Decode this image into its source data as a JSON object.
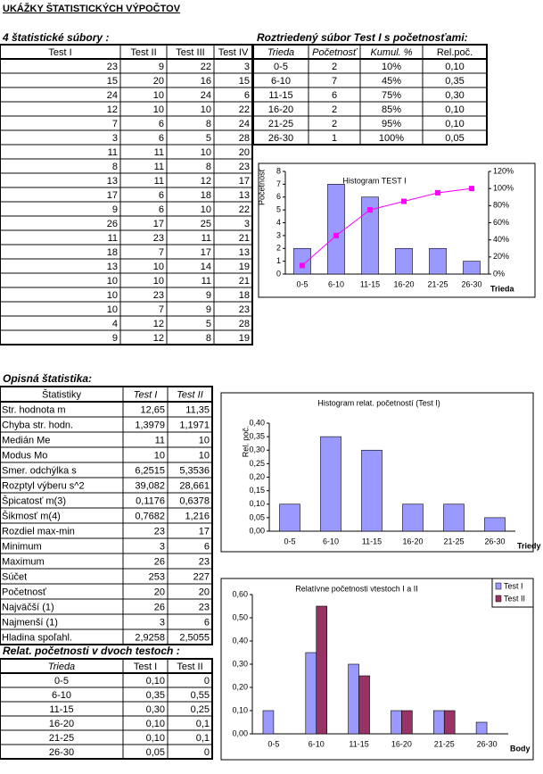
{
  "title": "UKÁŽKY ŠTATISTICKÝCH VÝPOČTOV",
  "raw": {
    "heading": "4 štatistické súbory :",
    "header": [
      "Test I",
      "Test II",
      "Test III",
      "Test IV"
    ],
    "rows": [
      [
        23,
        9,
        22,
        3
      ],
      [
        15,
        20,
        16,
        15
      ],
      [
        24,
        10,
        24,
        6
      ],
      [
        12,
        10,
        10,
        22
      ],
      [
        7,
        6,
        8,
        24
      ],
      [
        3,
        6,
        5,
        28
      ],
      [
        11,
        11,
        10,
        20
      ],
      [
        8,
        11,
        8,
        23
      ],
      [
        13,
        11,
        12,
        17
      ],
      [
        17,
        6,
        18,
        13
      ],
      [
        9,
        6,
        10,
        22
      ],
      [
        26,
        17,
        25,
        3
      ],
      [
        11,
        23,
        11,
        21
      ],
      [
        18,
        7,
        17,
        13
      ],
      [
        13,
        10,
        14,
        19
      ],
      [
        10,
        10,
        11,
        21
      ],
      [
        10,
        23,
        9,
        18
      ],
      [
        10,
        7,
        9,
        23
      ],
      [
        4,
        12,
        5,
        28
      ],
      [
        9,
        12,
        8,
        19
      ]
    ]
  },
  "freq": {
    "heading": "Roztriedený súbor Test I s početnosťami:",
    "header": [
      "Trieda",
      "Početnosť",
      "Kumul. %",
      "Rel.poč."
    ],
    "rows": [
      [
        "0-5",
        2,
        "10%",
        "0,10"
      ],
      [
        "6-10",
        7,
        "45%",
        "0,35"
      ],
      [
        "11-15",
        6,
        "75%",
        "0,30"
      ],
      [
        "16-20",
        2,
        "85%",
        "0,10"
      ],
      [
        "21-25",
        2,
        "95%",
        "0,10"
      ],
      [
        "26-30",
        1,
        "100%",
        "0,05"
      ]
    ]
  },
  "desc": {
    "heading": "Opisná štatistika:",
    "header": [
      "Štatistiky",
      "Test I",
      "Test II"
    ],
    "rows": [
      [
        "Str. hodnota m",
        "12,65",
        "11,35"
      ],
      [
        "Chyba str. hodn.",
        "1,3979",
        "1,1971"
      ],
      [
        "Medián  Me",
        11,
        10
      ],
      [
        "Modus Mo",
        10,
        10
      ],
      [
        "Smer. odchýlka s",
        "6,2515",
        "5,3536"
      ],
      [
        "Rozptyl výberu s^2",
        "39,082",
        "28,661"
      ],
      [
        "Špicatosť m(3)",
        "0,1176",
        "0,6378"
      ],
      [
        "Šikmosť m(4)",
        "0,7682",
        "1,216"
      ],
      [
        "Rozdiel max-min",
        23,
        17
      ],
      [
        "Minimum",
        3,
        6
      ],
      [
        "Maximum",
        26,
        23
      ],
      [
        "Súčet",
        253,
        227
      ],
      [
        "Početnosť",
        20,
        20
      ],
      [
        "Najväčší (1)",
        26,
        23
      ],
      [
        "Najmenší (1)",
        3,
        6
      ],
      [
        "Hladina spoľahl.",
        "2,9258",
        "2,5055"
      ]
    ]
  },
  "rel": {
    "heading": "Relat. početnosti v dvoch testoch :",
    "header": [
      "Trieda",
      "Test I",
      "Test II"
    ],
    "rows": [
      [
        "0-5",
        "0,10",
        0
      ],
      [
        "6-10",
        "0,35",
        "0,55"
      ],
      [
        "11-15",
        "0,30",
        "0,25"
      ],
      [
        "16-20",
        "0,10",
        "0,1"
      ],
      [
        "21-25",
        "0,10",
        "0,1"
      ],
      [
        "26-30",
        "0,05",
        0
      ]
    ]
  },
  "chart_data": [
    {
      "type": "bar",
      "title": "Histogram TEST  I",
      "y_label": "Početnosť",
      "x_label": "Trieda",
      "categories": [
        "0-5",
        "6-10",
        "11-15",
        "16-20",
        "21-25",
        "26-30"
      ],
      "series": [
        {
          "color": "#9999ff",
          "values": [
            2,
            7,
            6,
            2,
            2,
            1
          ]
        },
        {
          "type": "line",
          "axis": "y2",
          "color": "#ff00ff",
          "values": [
            10,
            45,
            75,
            85,
            95,
            100
          ]
        }
      ],
      "ylim": [
        0,
        8
      ],
      "yticks": [
        0,
        1,
        2,
        3,
        4,
        5,
        6,
        7,
        8
      ],
      "y2lim": [
        0,
        120
      ],
      "y2ticks": [
        {
          "value": 0,
          "label": "0%"
        },
        {
          "value": 20,
          "label": "20%"
        },
        {
          "value": 40,
          "label": "40%"
        },
        {
          "value": 60,
          "label": "60%"
        },
        {
          "value": 80,
          "label": "80%"
        },
        {
          "value": 100,
          "label": "100%"
        },
        {
          "value": 120,
          "label": "120%"
        }
      ]
    },
    {
      "type": "bar",
      "title": "Histogram relat. početností (Test I)",
      "y_label": "Rel. poč.",
      "x_label": "Triedy",
      "categories": [
        "0-5",
        "6-10",
        "11-15",
        "16-20",
        "21-25",
        "26-30"
      ],
      "values": [
        0.1,
        0.35,
        0.3,
        0.1,
        0.1,
        0.05
      ],
      "color": "#9999ff",
      "ylim": [
        0,
        0.4
      ],
      "yticks": [
        {
          "value": 0,
          "label": "0,00"
        },
        {
          "value": 0.05,
          "label": "0,05"
        },
        {
          "value": 0.1,
          "label": "0,10"
        },
        {
          "value": 0.15,
          "label": "0,15"
        },
        {
          "value": 0.2,
          "label": "0,20"
        },
        {
          "value": 0.25,
          "label": "0,25"
        },
        {
          "value": 0.3,
          "label": "0,30"
        },
        {
          "value": 0.35,
          "label": "0,35"
        },
        {
          "value": 0.4,
          "label": "0,40"
        }
      ]
    },
    {
      "type": "bar",
      "title": "Relatívne početnosti vtestoch I a  II",
      "x_label": "Body",
      "categories": [
        "0-5",
        "6-10",
        "11-15",
        "16-20",
        "21-25",
        "26-30"
      ],
      "series": [
        {
          "name": "Test I",
          "color": "#9999ff",
          "values": [
            0.1,
            0.35,
            0.3,
            0.1,
            0.1,
            0.05
          ]
        },
        {
          "name": "Test II",
          "color": "#993366",
          "values": [
            0,
            0.55,
            0.25,
            0.1,
            0.1,
            0
          ]
        }
      ],
      "legend": "top-right",
      "ylim": [
        0,
        0.6
      ],
      "yticks": [
        {
          "value": 0,
          "label": "0,00"
        },
        {
          "value": 0.1,
          "label": "0,10"
        },
        {
          "value": 0.2,
          "label": "0,20"
        },
        {
          "value": 0.3,
          "label": "0,30"
        },
        {
          "value": 0.4,
          "label": "0,40"
        },
        {
          "value": 0.5,
          "label": "0,50"
        },
        {
          "value": 0.6,
          "label": "0,60"
        }
      ]
    }
  ]
}
